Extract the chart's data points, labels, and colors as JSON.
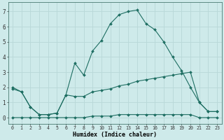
{
  "xlabel": "Humidex (Indice chaleur)",
  "bg_color": "#ceeaea",
  "grid_color": "#b8d8d8",
  "line_color": "#1e6e62",
  "xlim": [
    -0.5,
    23.5
  ],
  "ylim": [
    -0.4,
    7.6
  ],
  "xticks": [
    0,
    1,
    2,
    3,
    4,
    5,
    6,
    7,
    8,
    9,
    10,
    11,
    12,
    13,
    14,
    15,
    16,
    17,
    18,
    19,
    20,
    21,
    22,
    23
  ],
  "yticks": [
    0,
    1,
    2,
    3,
    4,
    5,
    6,
    7
  ],
  "series_big_x": [
    0,
    1,
    2,
    3,
    4,
    5,
    6,
    7,
    8,
    9,
    10,
    11,
    12,
    13,
    14,
    15,
    16,
    17,
    18,
    19,
    20,
    21,
    22,
    23
  ],
  "series_big_y": [
    2.0,
    1.7,
    0.7,
    0.2,
    0.2,
    0.3,
    1.5,
    3.6,
    2.8,
    4.4,
    5.1,
    6.2,
    6.8,
    7.0,
    7.1,
    6.2,
    5.8,
    5.0,
    4.0,
    3.1,
    2.0,
    1.0,
    0.4,
    0.4
  ],
  "series_mid_x": [
    0,
    1,
    2,
    3,
    4,
    5,
    6,
    7,
    8,
    9,
    10,
    11,
    12,
    13,
    14,
    15,
    16,
    17,
    18,
    19,
    20,
    21,
    22,
    23
  ],
  "series_mid_y": [
    1.9,
    1.7,
    0.7,
    0.2,
    0.2,
    0.3,
    1.5,
    1.4,
    1.4,
    1.7,
    1.8,
    1.9,
    2.1,
    2.2,
    2.4,
    2.5,
    2.6,
    2.7,
    2.8,
    2.9,
    3.0,
    1.0,
    0.4,
    0.4
  ],
  "series_low_x": [
    0,
    1,
    2,
    3,
    4,
    5,
    6,
    7,
    8,
    9,
    10,
    11,
    12,
    13,
    14,
    15,
    16,
    17,
    18,
    19,
    20,
    21,
    22,
    23
  ],
  "series_low_y": [
    0.0,
    0.0,
    0.0,
    0.0,
    0.0,
    0.0,
    0.0,
    0.0,
    0.0,
    0.1,
    0.1,
    0.1,
    0.2,
    0.2,
    0.2,
    0.2,
    0.2,
    0.2,
    0.2,
    0.2,
    0.2,
    0.0,
    0.0,
    0.0
  ]
}
